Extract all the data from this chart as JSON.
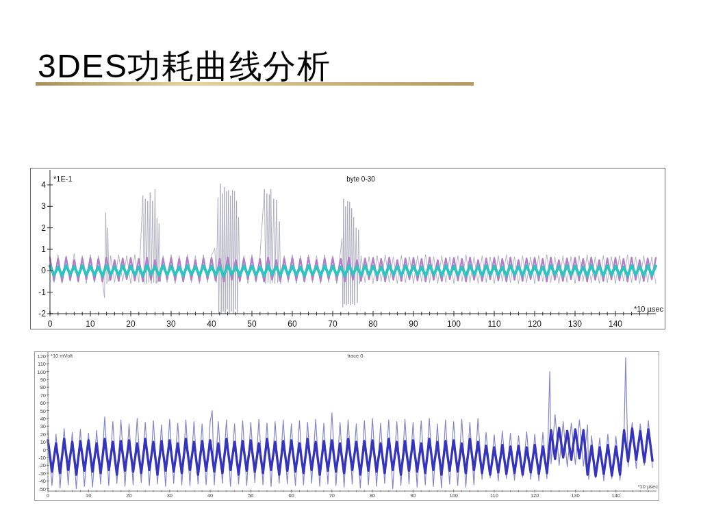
{
  "chart_data": [
    {
      "type": "other",
      "title": "3DES功耗曲线分析"
    },
    {
      "type": "line",
      "title": "byte 0-30",
      "ylabel": "*1E-1",
      "xlabel": "*10 µsec",
      "xlim": [
        0,
        150
      ],
      "ylim": [
        -2,
        4.7
      ],
      "yticks": [
        -2,
        -1,
        0,
        1,
        2,
        3,
        4
      ],
      "xticks": [
        0,
        {
          "value": 2,
          "label": null
        },
        {
          "value": 4,
          "label": null
        },
        {
          "value": 6,
          "label": null
        },
        {
          "value": 8,
          "label": null
        },
        10,
        {
          "value": 12,
          "label": null
        },
        {
          "value": 14,
          "label": null
        },
        {
          "value": 16,
          "label": null
        },
        {
          "value": 18,
          "label": null
        },
        20,
        {
          "value": 22,
          "label": null
        },
        {
          "value": 24,
          "label": null
        },
        {
          "value": 26,
          "label": null
        },
        {
          "value": 28,
          "label": null
        },
        30,
        {
          "value": 32,
          "label": null
        },
        {
          "value": 34,
          "label": null
        },
        {
          "value": 36,
          "label": null
        },
        {
          "value": 38,
          "label": null
        },
        40,
        {
          "value": 42,
          "label": null
        },
        {
          "value": 44,
          "label": null
        },
        {
          "value": 46,
          "label": null
        },
        {
          "value": 48,
          "label": null
        },
        50,
        {
          "value": 52,
          "label": null
        },
        {
          "value": 54,
          "label": null
        },
        {
          "value": 56,
          "label": null
        },
        {
          "value": 58,
          "label": null
        },
        60,
        {
          "value": 62,
          "label": null
        },
        {
          "value": 64,
          "label": null
        },
        {
          "value": 66,
          "label": null
        },
        {
          "value": 68,
          "label": null
        },
        70,
        {
          "value": 72,
          "label": null
        },
        {
          "value": 74,
          "label": null
        },
        {
          "value": 76,
          "label": null
        },
        {
          "value": 78,
          "label": null
        },
        80,
        {
          "value": 82,
          "label": null
        },
        {
          "value": 84,
          "label": null
        },
        {
          "value": 86,
          "label": null
        },
        {
          "value": 88,
          "label": null
        },
        90,
        {
          "value": 92,
          "label": null
        },
        {
          "value": 94,
          "label": null
        },
        {
          "value": 96,
          "label": null
        },
        {
          "value": 98,
          "label": null
        },
        100,
        {
          "value": 102,
          "label": null
        },
        {
          "value": 104,
          "label": null
        },
        {
          "value": 106,
          "label": null
        },
        {
          "value": 108,
          "label": null
        },
        110,
        {
          "value": 112,
          "label": null
        },
        {
          "value": 114,
          "label": null
        },
        {
          "value": 116,
          "label": null
        },
        {
          "value": 118,
          "label": null
        },
        120,
        {
          "value": 122,
          "label": null
        },
        {
          "value": 124,
          "label": null
        },
        {
          "value": 126,
          "label": null
        },
        {
          "value": 128,
          "label": null
        },
        130,
        {
          "value": 132,
          "label": null
        },
        {
          "value": 134,
          "label": null
        },
        {
          "value": 136,
          "label": null
        },
        {
          "value": 138,
          "label": null
        },
        140,
        {
          "value": 142,
          "label": null
        },
        {
          "value": 144,
          "label": null
        },
        {
          "value": 146,
          "label": null
        },
        {
          "value": 148,
          "label": null
        }
      ],
      "x": [
        0,
        1,
        2,
        3,
        4,
        5,
        6,
        7,
        8,
        9,
        10,
        11,
        12,
        13,
        14,
        15,
        16,
        17,
        18,
        19,
        20,
        21,
        22,
        23,
        24,
        25,
        26,
        27,
        28,
        29,
        30,
        31,
        32,
        33,
        34,
        35,
        36,
        37,
        38,
        39,
        40,
        41,
        42,
        43,
        44,
        45,
        46,
        47,
        48,
        49,
        50,
        51,
        52,
        53,
        54,
        55,
        56,
        57,
        58,
        59,
        60,
        61,
        62,
        63,
        64,
        65,
        66,
        67,
        68,
        69,
        70,
        71,
        72,
        73,
        74,
        75,
        76,
        77,
        78,
        79,
        80,
        81,
        82,
        83,
        84,
        85,
        86,
        87,
        88,
        89,
        90,
        91,
        92,
        93,
        94,
        95,
        96,
        97,
        98,
        99,
        100,
        101,
        102,
        103,
        104,
        105,
        106,
        107,
        108,
        109,
        110,
        111,
        112,
        113,
        114,
        115,
        116,
        117,
        118,
        119,
        120,
        121,
        122,
        123,
        124,
        125,
        126,
        127,
        128,
        129,
        130,
        131,
        132,
        133,
        134,
        135,
        136,
        137,
        138,
        139,
        140,
        141,
        142,
        143,
        144,
        145,
        146,
        147,
        148,
        149,
        150
      ],
      "series": [
        {
          "color": "#a0a0b4",
          "x": [
            0,
            1,
            2,
            3,
            4,
            5,
            6,
            7,
            8,
            9,
            10,
            11,
            12,
            13,
            13.5,
            13.8,
            14.1,
            14.3,
            14.6,
            15,
            16,
            17,
            18,
            19,
            20,
            21,
            22,
            23,
            23.3,
            23.6,
            23.9,
            24.2,
            24.5,
            24.8,
            25.1,
            25.4,
            25.7,
            26,
            26.3,
            26.5,
            26.7,
            27,
            27.3,
            28,
            29,
            30,
            31,
            32,
            33,
            34,
            35,
            36,
            37,
            38,
            39,
            40,
            40.8,
            41.2,
            41.6,
            41.8,
            42.2,
            42.4,
            42.7,
            42.9,
            43.2,
            43.4,
            43.7,
            43.9,
            44.2,
            44.4,
            44.7,
            44.9,
            45.2,
            45.4,
            45.7,
            45.9,
            46.2,
            46.4,
            46.7,
            47,
            48,
            49,
            50,
            51,
            52,
            53.1,
            53.4,
            53.7,
            54,
            54.3,
            54.5,
            54.7,
            55,
            55.4,
            55.7,
            56.1,
            56.4,
            56.8,
            57.1,
            58,
            59,
            60,
            61,
            62,
            63,
            64,
            65,
            66,
            67,
            68,
            69,
            70,
            71,
            72.3,
            72.5,
            72.7,
            72.9,
            73.2,
            73.4,
            73.7,
            73.9,
            74.2,
            74.4,
            74.7,
            74.9,
            75.2,
            75.4,
            75.8,
            76.1,
            76.4,
            76.7,
            77,
            78,
            79,
            80,
            81,
            82,
            83,
            84,
            85,
            86,
            87,
            88,
            89,
            90,
            91,
            92,
            93,
            94,
            95,
            96,
            97,
            98,
            99,
            100,
            101,
            102,
            103,
            104,
            105,
            106,
            107,
            108,
            109,
            110,
            111,
            112,
            113,
            114,
            115,
            116,
            117,
            118,
            119,
            120,
            121,
            122,
            123,
            124,
            125,
            126,
            127,
            128,
            129,
            130,
            131,
            132,
            133,
            134,
            135,
            136,
            137,
            138,
            139,
            140,
            141,
            142,
            143,
            144,
            145,
            146,
            147,
            148,
            149,
            150
          ],
          "values": [
            0.7,
            -0.55,
            0.75,
            -0.6,
            0.7,
            -0.5,
            0.8,
            -0.55,
            0.7,
            -0.6,
            0.75,
            -0.55,
            0.7,
            -0.5,
            -1.25,
            2.7,
            -0.6,
            2.0,
            -0.5,
            0.7,
            -0.55,
            0.75,
            -0.5,
            0.7,
            -0.6,
            0.75,
            -0.55,
            3.5,
            -0.6,
            3.35,
            -0.6,
            3.25,
            -0.55,
            3.65,
            -0.6,
            3.25,
            -0.55,
            3.8,
            -0.6,
            2.45,
            -0.55,
            2.2,
            -0.5,
            0.7,
            -0.55,
            0.75,
            -0.6,
            0.7,
            -0.5,
            0.75,
            -0.55,
            0.7,
            -0.6,
            0.75,
            -0.55,
            0.7,
            1.05,
            -0.55,
            3.4,
            -2,
            4.05,
            -2,
            3.6,
            -1.9,
            3.9,
            -2,
            3.7,
            -1.8,
            3.75,
            -2,
            3.5,
            -1.9,
            3.75,
            -2,
            3.7,
            -1.8,
            3.25,
            -2,
            2.5,
            -0.55,
            0.7,
            -0.6,
            0.75,
            -0.55,
            0.7,
            3.8,
            -0.6,
            3.6,
            -0.55,
            3.55,
            -0.6,
            3.8,
            -0.55,
            3.35,
            -0.6,
            3.3,
            -0.55,
            2.3,
            -0.6,
            0.7,
            -0.55,
            0.75,
            -0.6,
            0.7,
            -0.5,
            0.75,
            -0.55,
            0.7,
            -0.6,
            0.75,
            -0.55,
            0.7,
            -0.6,
            1.5,
            -1.7,
            3.35,
            -1.55,
            3,
            -1.6,
            3.25,
            -1.55,
            3.2,
            -1.6,
            2.9,
            -1.55,
            2.5,
            -1.6,
            2,
            -1.5,
            1.9,
            -0.6,
            0.7,
            -0.55,
            0.65,
            -0.6,
            0.7,
            -0.5,
            0.75,
            -0.55,
            0.65,
            -0.6,
            0.7,
            -0.55,
            0.65,
            -0.6,
            0.7,
            -0.5,
            0.75,
            -0.55,
            0.65,
            -0.6,
            0.7,
            -0.55,
            0.65,
            -0.6,
            0.7,
            -0.5,
            0.75,
            -0.55,
            0.65,
            -0.6,
            0.7,
            -0.55,
            0.65,
            -0.6,
            0.7,
            -0.5,
            0.75,
            -0.55,
            0.65,
            -0.6,
            0.7,
            -0.55,
            0.65,
            -0.6,
            0.7,
            -0.5,
            0.75,
            -0.55,
            0.65,
            -0.6,
            0.7,
            -0.55,
            0.65,
            -0.6,
            0.7,
            -0.5,
            0.75,
            -0.55,
            0.65,
            -0.6,
            0.7,
            -0.55,
            0.65,
            -0.6,
            0.7,
            -0.5,
            0.75,
            -0.55,
            0.65,
            -0.6,
            0.7,
            -0.55,
            0.65,
            -0.6
          ]
        },
        {
          "color": "#b47cc8",
          "values": [
            0.6,
            -0.45,
            0.55,
            -0.5,
            0.62,
            -0.42,
            0.5,
            -0.48,
            0.58,
            -0.4,
            0.6,
            -0.45,
            0.55,
            -0.5,
            0.62,
            -0.42,
            0.5,
            -0.48,
            0.58,
            -0.4,
            0.6,
            -0.45,
            0.55,
            -0.5,
            0.62,
            -0.42,
            0.5,
            -0.48,
            0.58,
            -0.4,
            0.6,
            -0.45,
            0.55,
            -0.5,
            0.62,
            -0.42,
            0.5,
            -0.48,
            0.58,
            -0.4,
            0.6,
            -0.45,
            0.55,
            -0.5,
            0.62,
            -0.42,
            0.5,
            -0.48,
            0.58,
            -0.4,
            0.6,
            -0.45,
            0.55,
            -0.5,
            0.62,
            -0.42,
            0.5,
            -0.48,
            0.58,
            -0.4,
            0.6,
            -0.45,
            0.55,
            -0.5,
            0.62,
            -0.42,
            0.5,
            -0.48,
            0.58,
            -0.4,
            0.6,
            -0.45,
            0.55,
            -0.5,
            0.62,
            -0.42,
            0.5,
            -0.48,
            0.58,
            -0.4,
            0.6,
            -0.45,
            0.55,
            -0.5,
            0.62,
            -0.42,
            0.5,
            -0.48,
            0.58,
            -0.4,
            0.6,
            -0.45,
            0.55,
            -0.5,
            0.62,
            -0.42,
            0.5,
            -0.48,
            0.58,
            -0.4,
            0.6,
            -0.45,
            0.55,
            -0.5,
            0.62,
            -0.42,
            0.5,
            -0.48,
            0.58,
            -0.4,
            0.6,
            -0.45,
            0.55,
            -0.5,
            0.62,
            -0.42,
            0.5,
            -0.48,
            0.58,
            -0.4,
            0.6,
            -0.45,
            0.55,
            -0.5,
            0.62,
            -0.42,
            0.5,
            -0.48,
            0.58,
            -0.4,
            0.6,
            -0.45,
            0.55,
            -0.5,
            0.62,
            -0.42,
            0.5,
            -0.48,
            0.58,
            -0.4,
            0.6,
            -0.45,
            0.55,
            -0.5,
            0.62,
            -0.42,
            0.5,
            -0.48,
            0.58,
            -0.4,
            0.6
          ]
        },
        {
          "color": "#30c4c0",
          "values": [
            0.22,
            -0.2,
            0.18,
            -0.24,
            0.25,
            -0.18,
            0.2,
            -0.22,
            0.24,
            -0.2,
            0.22,
            -0.2,
            0.18,
            -0.24,
            0.25,
            -0.18,
            0.2,
            -0.22,
            0.24,
            -0.2,
            0.22,
            -0.2,
            0.18,
            -0.24,
            0.25,
            -0.18,
            0.2,
            -0.22,
            0.24,
            -0.2,
            0.22,
            -0.2,
            0.18,
            -0.24,
            0.25,
            -0.18,
            0.2,
            -0.22,
            0.24,
            -0.2,
            0.22,
            -0.2,
            0.18,
            -0.24,
            0.25,
            -0.18,
            0.2,
            -0.22,
            0.24,
            -0.2,
            0.22,
            -0.2,
            0.18,
            -0.24,
            0.25,
            -0.18,
            0.2,
            -0.22,
            0.24,
            -0.2,
            0.22,
            -0.2,
            0.18,
            -0.24,
            0.25,
            -0.18,
            0.2,
            -0.22,
            0.24,
            -0.2,
            0.22,
            -0.2,
            0.18,
            -0.24,
            0.25,
            -0.18,
            0.2,
            -0.22,
            0.24,
            -0.2,
            0.22,
            -0.2,
            0.18,
            -0.24,
            0.25,
            -0.18,
            0.2,
            -0.22,
            0.24,
            -0.2,
            0.22,
            -0.2,
            0.18,
            -0.24,
            0.25,
            -0.18,
            0.2,
            -0.22,
            0.24,
            -0.2,
            0.22,
            -0.2,
            0.18,
            -0.24,
            0.25,
            -0.18,
            0.2,
            -0.22,
            0.24,
            -0.2,
            0.22,
            -0.2,
            0.18,
            -0.24,
            0.25,
            -0.18,
            0.2,
            -0.22,
            0.24,
            -0.2,
            0.22,
            -0.2,
            0.18,
            -0.24,
            0.25,
            -0.18,
            0.2,
            -0.22,
            0.24,
            -0.2,
            0.22,
            -0.2,
            0.18,
            -0.24,
            0.25,
            -0.18,
            0.2,
            -0.22,
            0.24,
            -0.2,
            0.22,
            -0.2,
            0.18,
            -0.24,
            0.25,
            -0.18,
            0.2,
            -0.22,
            0.24,
            -0.2,
            0.22
          ]
        }
      ]
    },
    {
      "type": "line",
      "title": "trace 0",
      "ylabel": "*10 mVolt",
      "xlabel": "*10 µsec",
      "xlim": [
        0,
        150
      ],
      "ylim": [
        -53,
        125
      ],
      "yticks": [
        -50,
        -40,
        -30,
        -20,
        -10,
        0,
        10,
        20,
        30,
        40,
        50,
        60,
        70,
        80,
        90,
        100,
        110,
        120
      ],
      "xticks": [
        0,
        {
          "value": 2,
          "label": null
        },
        {
          "value": 4,
          "label": null
        },
        {
          "value": 6,
          "label": null
        },
        {
          "value": 8,
          "label": null
        },
        10,
        {
          "value": 12,
          "label": null
        },
        {
          "value": 14,
          "label": null
        },
        {
          "value": 16,
          "label": null
        },
        {
          "value": 18,
          "label": null
        },
        20,
        {
          "value": 22,
          "label": null
        },
        {
          "value": 24,
          "label": null
        },
        {
          "value": 26,
          "label": null
        },
        {
          "value": 28,
          "label": null
        },
        30,
        {
          "value": 32,
          "label": null
        },
        {
          "value": 34,
          "label": null
        },
        {
          "value": 36,
          "label": null
        },
        {
          "value": 38,
          "label": null
        },
        40,
        {
          "value": 42,
          "label": null
        },
        {
          "value": 44,
          "label": null
        },
        {
          "value": 46,
          "label": null
        },
        {
          "value": 48,
          "label": null
        },
        50,
        {
          "value": 52,
          "label": null
        },
        {
          "value": 54,
          "label": null
        },
        {
          "value": 56,
          "label": null
        },
        {
          "value": 58,
          "label": null
        },
        60,
        {
          "value": 62,
          "label": null
        },
        {
          "value": 64,
          "label": null
        },
        {
          "value": 66,
          "label": null
        },
        {
          "value": 68,
          "label": null
        },
        70,
        {
          "value": 72,
          "label": null
        },
        {
          "value": 74,
          "label": null
        },
        {
          "value": 76,
          "label": null
        },
        {
          "value": 78,
          "label": null
        },
        80,
        {
          "value": 82,
          "label": null
        },
        {
          "value": 84,
          "label": null
        },
        {
          "value": 86,
          "label": null
        },
        {
          "value": 88,
          "label": null
        },
        90,
        {
          "value": 92,
          "label": null
        },
        {
          "value": 94,
          "label": null
        },
        {
          "value": 96,
          "label": null
        },
        {
          "value": 98,
          "label": null
        },
        100,
        {
          "value": 102,
          "label": null
        },
        {
          "value": 104,
          "label": null
        },
        {
          "value": 106,
          "label": null
        },
        {
          "value": 108,
          "label": null
        },
        110,
        {
          "value": 112,
          "label": null
        },
        {
          "value": 114,
          "label": null
        },
        {
          "value": 116,
          "label": null
        },
        {
          "value": 118,
          "label": null
        },
        120,
        {
          "value": 122,
          "label": null
        },
        {
          "value": 124,
          "label": null
        },
        {
          "value": 126,
          "label": null
        },
        {
          "value": 128,
          "label": null
        },
        130,
        {
          "value": 132,
          "label": null
        },
        {
          "value": 134,
          "label": null
        },
        {
          "value": 136,
          "label": null
        },
        {
          "value": 138,
          "label": null
        },
        140,
        {
          "value": 142,
          "label": null
        },
        {
          "value": 144,
          "label": null
        },
        {
          "value": 146,
          "label": null
        },
        {
          "value": 148,
          "label": null
        }
      ],
      "x": [
        0,
        1,
        2,
        3,
        4,
        5,
        6,
        7,
        8,
        9,
        10,
        11,
        12,
        13,
        14,
        15,
        16,
        17,
        18,
        19,
        20,
        21,
        22,
        23,
        24,
        25,
        26,
        27,
        28,
        29,
        30,
        31,
        32,
        33,
        34,
        35,
        36,
        37,
        38,
        39,
        40,
        41,
        42,
        43,
        44,
        45,
        46,
        47,
        48,
        49,
        50,
        51,
        52,
        53,
        54,
        55,
        56,
        57,
        58,
        59,
        60,
        61,
        62,
        63,
        64,
        65,
        66,
        67,
        68,
        69,
        70,
        71,
        72,
        73,
        74,
        75,
        76,
        77,
        78,
        79,
        80,
        81,
        82,
        83,
        84,
        85,
        86,
        87,
        88,
        89,
        90,
        91,
        92,
        93,
        94,
        95,
        96,
        97,
        98,
        99,
        100,
        101,
        102,
        103,
        104,
        105,
        106,
        107,
        108,
        109,
        110,
        111,
        112,
        113,
        114,
        115,
        116,
        117,
        118,
        119,
        120,
        121,
        122,
        123,
        124,
        125,
        126,
        127,
        128,
        129,
        130,
        131,
        132,
        133,
        134,
        135,
        136,
        137,
        138,
        139,
        140,
        141,
        142,
        143,
        144,
        145,
        146,
        147,
        148,
        149
      ],
      "series": [
        {
          "color": "#8484cc",
          "x": [
            0,
            1,
            2,
            3,
            4,
            5,
            6,
            7,
            8,
            9,
            10,
            11,
            12,
            13,
            14,
            15,
            16,
            17,
            18,
            19,
            20,
            21,
            22,
            23,
            24,
            25,
            26,
            27,
            28,
            29,
            30,
            31,
            32,
            33,
            34,
            35,
            36,
            37,
            38,
            39,
            40,
            40.5,
            41,
            42,
            43,
            44,
            45,
            46,
            47,
            48,
            49,
            50,
            51,
            52,
            53,
            54,
            55,
            56,
            57,
            58,
            59,
            60,
            61,
            62,
            63,
            64,
            65,
            66,
            67,
            68,
            69,
            70,
            71,
            72,
            73,
            74,
            75,
            76,
            77,
            78,
            79,
            80,
            81,
            82,
            83,
            84,
            85,
            86,
            87,
            88,
            89,
            90,
            91,
            92,
            93,
            94,
            95,
            96,
            97,
            98,
            99,
            100,
            101,
            102,
            103,
            104,
            105,
            106,
            107,
            108,
            109,
            110,
            111,
            112,
            113,
            114,
            115,
            116,
            117,
            118,
            119,
            120,
            121,
            122,
            123,
            123.7,
            124,
            125,
            126,
            127,
            128,
            129,
            130,
            131,
            132,
            133,
            133.3,
            134,
            135,
            136,
            137,
            138,
            139,
            140,
            141,
            142,
            142.4,
            143,
            144,
            145,
            146,
            147,
            148,
            149
          ],
          "values": [
            24,
            -46,
            20,
            -49,
            27,
            -45,
            22,
            -50,
            26,
            -47,
            21,
            -48,
            25,
            -44,
            42,
            -46,
            36,
            -43,
            38,
            -47,
            33,
            -45,
            40,
            -42,
            35,
            -46,
            37,
            -44,
            32,
            -47,
            39,
            -43,
            34,
            -45,
            38,
            -46,
            36,
            -44,
            33,
            -45,
            36,
            50,
            -45,
            36,
            -43,
            38,
            -47,
            33,
            -44,
            37,
            -46,
            35,
            -42,
            39,
            -45,
            34,
            -47,
            36,
            -43,
            38,
            -44,
            33,
            -46,
            37,
            -45,
            35,
            -43,
            39,
            -47,
            34,
            -44,
            47,
            -46,
            35,
            -48,
            38,
            -44,
            33,
            -49,
            37,
            -45,
            40,
            -47,
            34,
            -43,
            38,
            -50,
            36,
            -46,
            39,
            -44,
            35,
            -48,
            37,
            -45,
            40,
            -47,
            33,
            -49,
            38,
            -44,
            36,
            -46,
            39,
            -48,
            35,
            -45,
            40,
            -38,
            22,
            -36,
            19,
            -40,
            24,
            -37,
            21,
            -39,
            18,
            -35,
            23,
            -38,
            20,
            -40,
            22,
            -37,
            100,
            -18,
            45,
            -20,
            36,
            -22,
            34,
            -19,
            38,
            -21,
            32,
            -38,
            18,
            -36,
            15,
            -40,
            20,
            -37,
            17,
            -39,
            19,
            118,
            -22,
            35,
            -24,
            33,
            -20,
            37,
            -23
          ]
        },
        {
          "color": "#3434bc",
          "values": [
            12,
            -28,
            8,
            -30,
            14,
            -26,
            10,
            -32,
            11,
            -27,
            12,
            -28,
            8,
            -30,
            14,
            -26,
            10,
            -32,
            11,
            -27,
            12,
            -28,
            8,
            -30,
            14,
            -26,
            10,
            -32,
            11,
            -27,
            12,
            -28,
            8,
            -30,
            14,
            -26,
            10,
            -32,
            11,
            -27,
            12,
            -28,
            8,
            -30,
            14,
            -26,
            10,
            -32,
            11,
            -27,
            12,
            -28,
            8,
            -30,
            14,
            -26,
            10,
            -32,
            11,
            -27,
            12,
            -28,
            8,
            -30,
            14,
            -26,
            10,
            -32,
            11,
            -27,
            12,
            -28,
            8,
            -30,
            14,
            -26,
            10,
            -32,
            11,
            -27,
            12,
            -28,
            8,
            -30,
            14,
            -26,
            10,
            -32,
            11,
            -27,
            12,
            -28,
            8,
            -30,
            14,
            -26,
            10,
            -32,
            11,
            -27,
            12,
            -28,
            8,
            -30,
            14,
            -26,
            10,
            -30,
            5,
            -32,
            3,
            -29,
            6,
            -31,
            4,
            -30,
            5,
            -32,
            3,
            -29,
            6,
            -31,
            4,
            -30,
            25,
            -12,
            28,
            -10,
            24,
            -13,
            26,
            -11,
            25,
            -32,
            5,
            -34,
            3,
            -31,
            6,
            -33,
            4,
            -32,
            25,
            -15,
            27,
            -13,
            24,
            -16,
            26,
            -14
          ]
        }
      ]
    }
  ]
}
